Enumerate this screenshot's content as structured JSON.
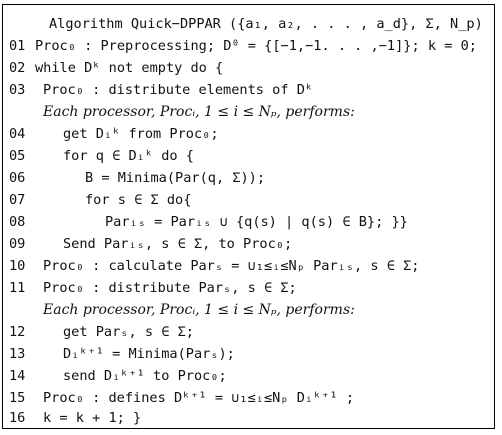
{
  "algorithm": {
    "header": "Algorithm Quick−DPPAR ({a₁, a₂, . . . , a_d}, Σ, N_p)",
    "lines": [
      {
        "num": "01",
        "text": "Proc₀ : Preprocessing; D⁰ = {[−1,−1. . . ,−1]}; k = 0;"
      },
      {
        "num": "02",
        "text": "while Dᵏ not empty do {"
      },
      {
        "num": "03",
        "text": "Proc₀ : distribute elements of Dᵏ"
      },
      {
        "num": "",
        "text": "Each processor, Procᵢ, 1 ≤ i ≤ Nₚ, performs:"
      },
      {
        "num": "04",
        "text": "get Dᵢᵏ from Proc₀;"
      },
      {
        "num": "05",
        "text": "for q ∈ Dᵢᵏ do {"
      },
      {
        "num": "06",
        "text": "B = Minima(Par(q, Σ));"
      },
      {
        "num": "07",
        "text": "for s ∈ Σ do{"
      },
      {
        "num": "08",
        "text": "Parᵢₛ = Parᵢₛ ∪ {q(s) | q(s) ∈ B}; }}"
      },
      {
        "num": "09",
        "text": "Send Parᵢₛ, s ∈ Σ,  to Proc₀;"
      },
      {
        "num": "10",
        "text": "Proc₀ : calculate Parₛ = ∪₁≤ᵢ≤Nₚ Parᵢₛ, s ∈ Σ;"
      },
      {
        "num": "11",
        "text": "Proc₀ : distribute Parₛ, s ∈ Σ;"
      },
      {
        "num": "",
        "text": "Each processor, Procᵢ, 1 ≤ i ≤ Nₚ, performs:"
      },
      {
        "num": "12",
        "text": "get  Parₛ, s ∈ Σ;"
      },
      {
        "num": "13",
        "text": "Dᵢᵏ⁺¹ = Minima(Parₛ);"
      },
      {
        "num": "14",
        "text": "send Dᵢᵏ⁺¹ to Proc₀;"
      },
      {
        "num": "15",
        "text": "Proc₀ : defines Dᵏ⁺¹ = ∪₁≤ᵢ≤Nₚ Dᵢᵏ⁺¹ ;"
      },
      {
        "num": "16",
        "text": "k = k + 1; }"
      }
    ]
  }
}
